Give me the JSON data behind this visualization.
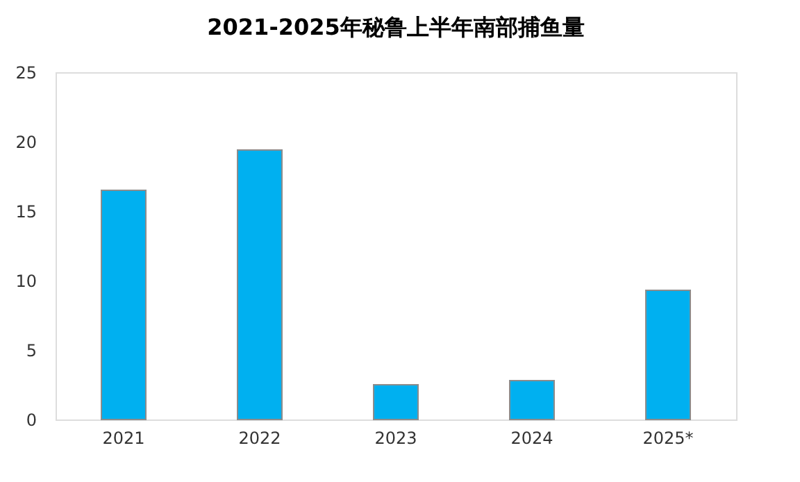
{
  "chart_data": {
    "type": "bar",
    "title": "2021-2025年秘鲁上半年南部捕鱼量",
    "categories": [
      "2021",
      "2022",
      "2023",
      "2024",
      "2025*"
    ],
    "values": [
      16.5,
      19.4,
      2.5,
      2.8,
      9.3
    ],
    "color": "#00b0f0",
    "ylim": [
      0,
      25
    ],
    "yticks": [
      0,
      5,
      10,
      15,
      20,
      25
    ],
    "grid": false
  }
}
